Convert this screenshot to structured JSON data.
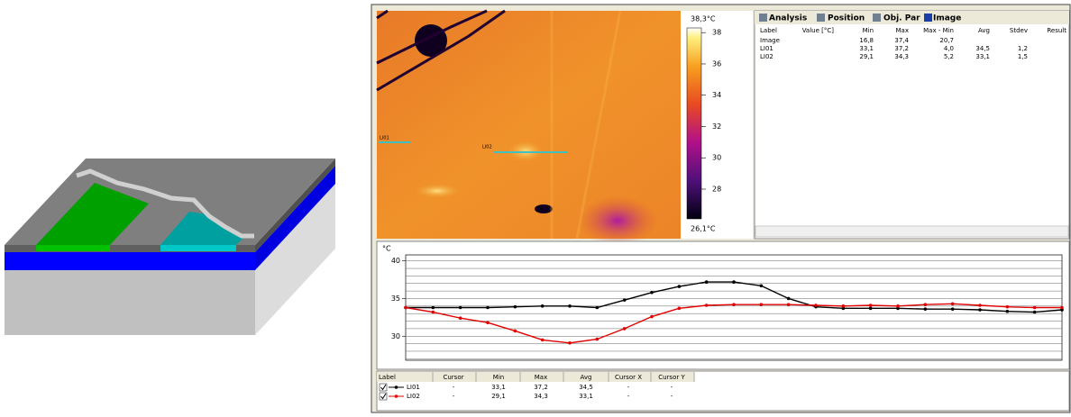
{
  "thermal_image": {
    "profile_lines": [
      "LI01",
      "LI02"
    ],
    "colorbar": {
      "range": [
        {
          "value": 26.1,
          "label": "26,1°C"
        },
        {
          "value": 38.3,
          "label": "38,3°C"
        }
      ],
      "ticks": [
        28,
        30,
        32,
        34,
        36,
        38
      ]
    }
  },
  "analysis_panel": {
    "tabs": [
      "Analysis",
      "Position",
      "Obj. Par",
      "Image"
    ],
    "columns": [
      "Label",
      "Value [°C]",
      "Min",
      "Max",
      "Max - Min",
      "Avg",
      "Stdev",
      "Result"
    ],
    "rows": [
      [
        "Image",
        null,
        "16,8",
        "37,4",
        "20,7",
        null,
        null,
        null
      ],
      [
        "LI01",
        null,
        "33,1",
        "37,2",
        "4,0",
        "34,5",
        "1,2",
        null
      ],
      [
        "LI02",
        null,
        "29,1",
        "34,3",
        "5,2",
        "33,1",
        "1,5",
        null
      ]
    ]
  },
  "chart_data": {
    "type": "line",
    "y_unit_label": "°C",
    "series": [
      {
        "name": "LI01",
        "color": "#000000",
        "values": [
          33.8,
          33.8,
          33.8,
          33.8,
          33.9,
          34.0,
          34.0,
          33.8,
          34.8,
          35.8,
          36.6,
          37.2,
          37.2,
          36.7,
          35.0,
          33.9,
          33.7,
          33.7,
          33.7,
          33.6,
          33.6,
          33.5,
          33.3,
          33.2,
          33.5
        ]
      },
      {
        "name": "LI02",
        "color": "#e00000",
        "values": [
          33.8,
          33.2,
          32.4,
          31.8,
          30.7,
          29.5,
          29.1,
          29.6,
          31.0,
          32.6,
          33.7,
          34.1,
          34.2,
          34.2,
          34.2,
          34.1,
          34.0,
          34.1,
          34.0,
          34.2,
          34.3,
          34.1,
          33.9,
          33.8,
          33.8
        ]
      }
    ],
    "ylim": [
      26.8,
      40.8
    ],
    "yticks": [
      30,
      35,
      40
    ],
    "grid_lines": [
      27,
      28,
      29,
      30,
      31,
      32,
      33,
      34,
      35,
      36,
      37,
      38,
      39,
      40
    ],
    "grid": true
  },
  "legend_table": {
    "columns": [
      "Label",
      "Cursor",
      "Min",
      "Max",
      "Avg",
      "Cursor X",
      "Cursor Y"
    ],
    "rows": [
      [
        "LI01",
        "-",
        "33,1",
        "37,2",
        "34,5",
        "-",
        "-"
      ],
      [
        "LI02",
        "-",
        "29,1",
        "34,3",
        "33,1",
        "-",
        "-"
      ]
    ]
  }
}
